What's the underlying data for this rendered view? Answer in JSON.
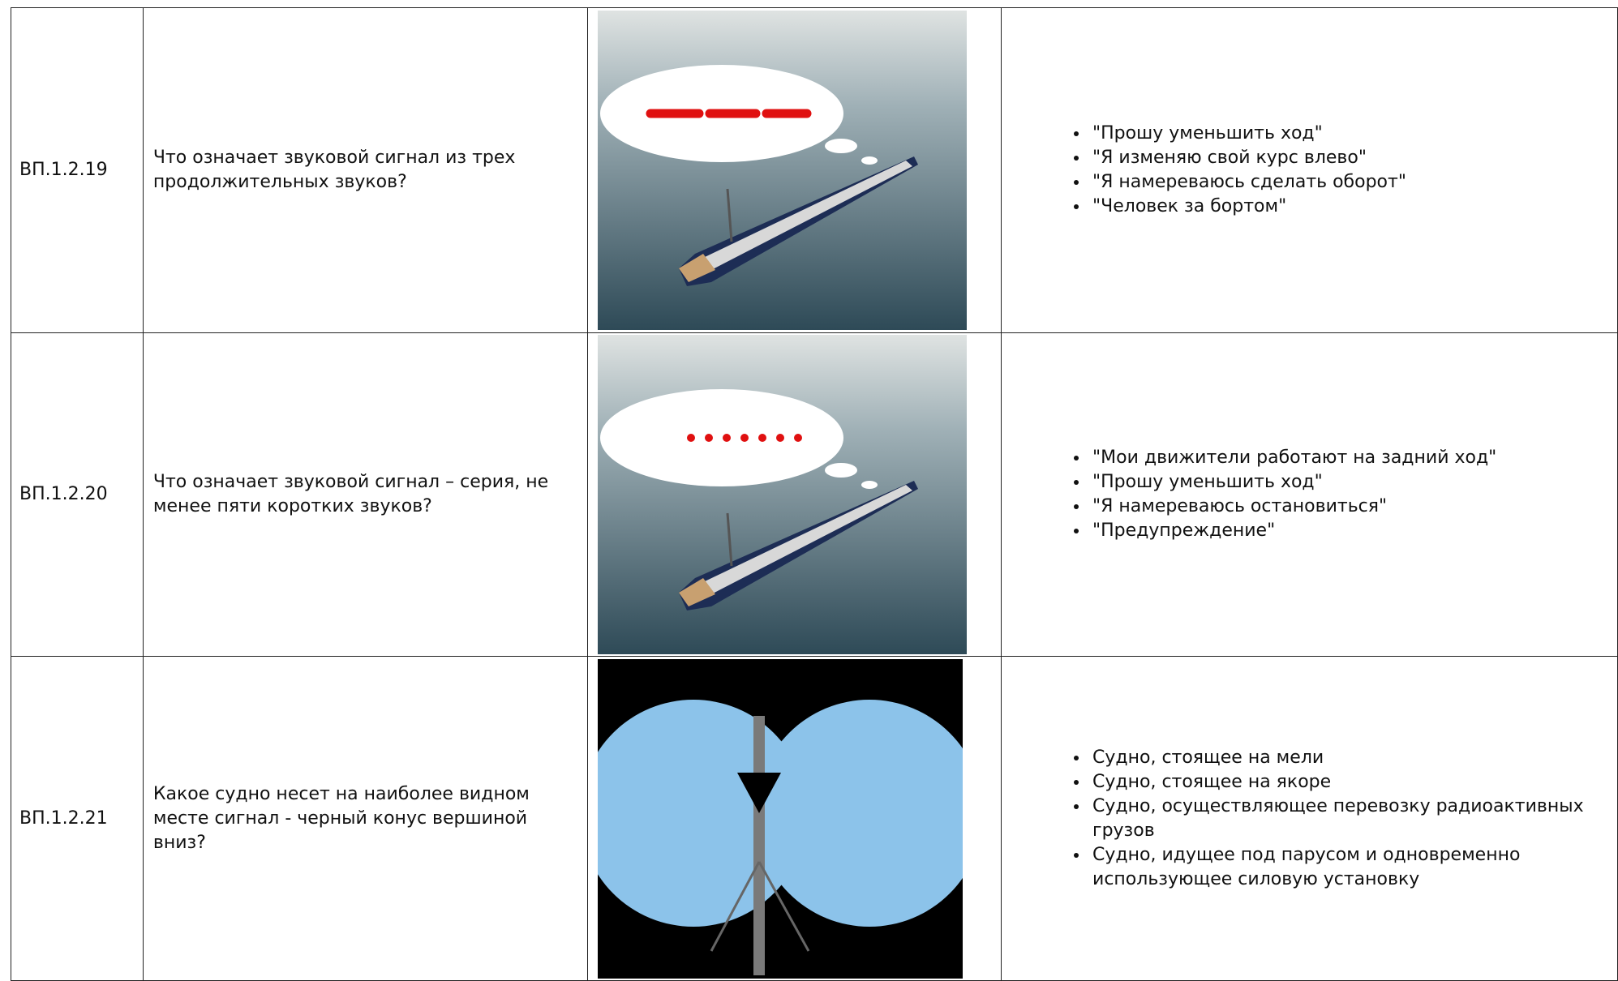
{
  "table": {
    "rows": [
      {
        "id": "ВП.1.2.19",
        "question": "Что означает звуковой сигнал из трех продолжительных звуков?",
        "answers": [
          "\"Прошу уменьшить ход\"",
          "\"Я изменяю свой курс влево\"",
          "\"Я намереваюсь сделать оборот\"",
          "\"Человек за бортом\""
        ]
      },
      {
        "id": "ВП.1.2.20",
        "question": "Что означает звуковой сигнал – серия, не менее пяти коротких звуков?",
        "answers": [
          "\"Мои движители работают на задний ход\"",
          "\"Прошу уменьшить ход\"",
          "\"Я намереваюсь остановиться\"",
          "\"Предупреждение\""
        ]
      },
      {
        "id": "ВП.1.2.21",
        "question": "Какое судно несет на наиболее видном месте сигнал - черный конус вершиной вниз?",
        "answers": [
          "Судно, стоящее на мели",
          "Судно, стоящее на якоре",
          "Судно, осуществляющее перевозку радиоактивных грузов",
          "Судно, идущее под парусом и одновременно использующее силовую установку"
        ]
      }
    ]
  }
}
